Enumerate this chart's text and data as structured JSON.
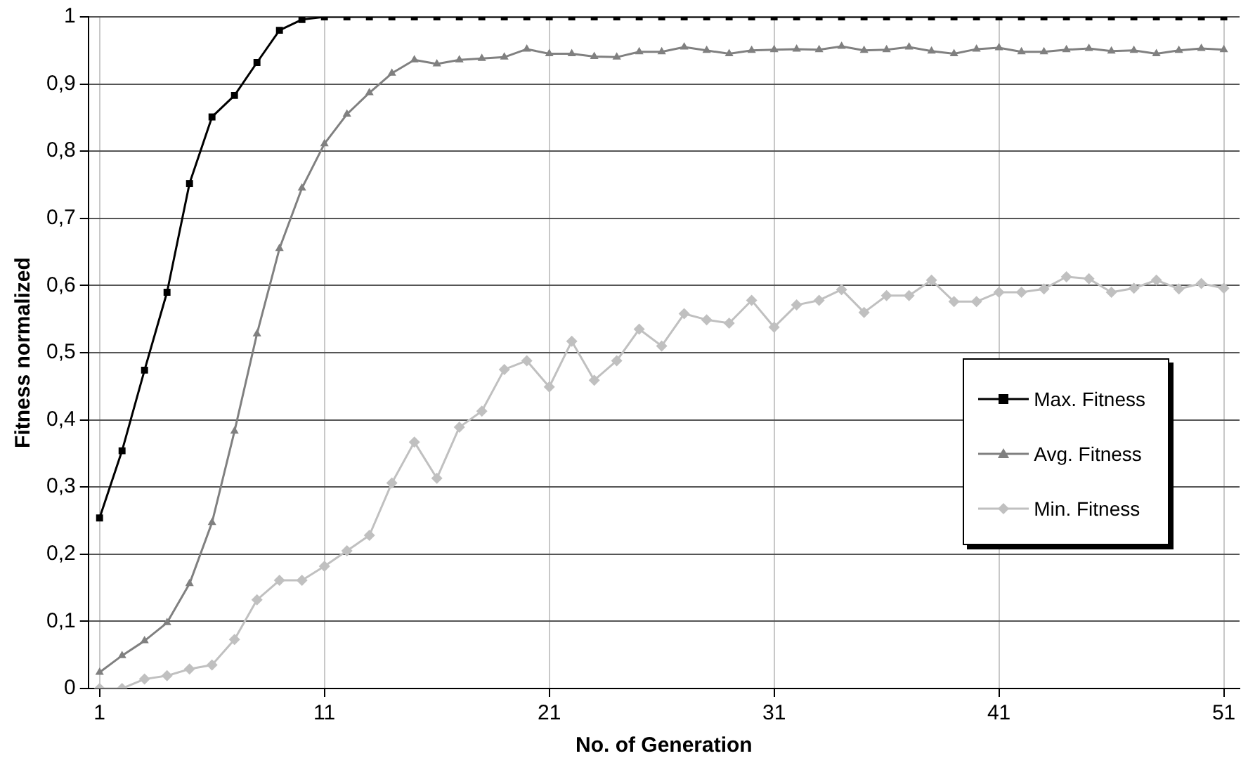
{
  "chart_data": {
    "type": "line",
    "xlabel": "No. of Generation",
    "ylabel": "Fitness normalized",
    "x": [
      1,
      2,
      3,
      4,
      5,
      6,
      7,
      8,
      9,
      10,
      11,
      12,
      13,
      14,
      15,
      16,
      17,
      18,
      19,
      20,
      21,
      22,
      23,
      24,
      25,
      26,
      27,
      28,
      29,
      30,
      31,
      32,
      33,
      34,
      35,
      36,
      37,
      38,
      39,
      40,
      41,
      42,
      43,
      44,
      45,
      46,
      47,
      48,
      49,
      50,
      51
    ],
    "series": [
      {
        "name": "Max. Fitness",
        "color": "#000000",
        "marker": "square",
        "values": [
          0.254,
          0.354,
          0.474,
          0.59,
          0.752,
          0.851,
          0.883,
          0.932,
          0.98,
          0.996,
          1,
          1,
          1,
          1,
          1,
          1,
          1,
          1,
          1,
          1,
          1,
          1,
          1,
          1,
          1,
          1,
          1,
          1,
          1,
          1,
          1,
          1,
          1,
          1,
          1,
          1,
          1,
          1,
          1,
          1,
          1,
          1,
          1,
          1,
          1,
          1,
          1,
          1,
          1,
          1,
          1
        ]
      },
      {
        "name": "Avg. Fitness",
        "color": "#808080",
        "marker": "triangle",
        "values": [
          0.024,
          0.049,
          0.071,
          0.098,
          0.156,
          0.247,
          0.383,
          0.528,
          0.655,
          0.745,
          0.811,
          0.855,
          0.887,
          0.916,
          0.936,
          0.93,
          0.936,
          0.938,
          0.94,
          0.952,
          0.945,
          0.945,
          0.941,
          0.94,
          0.948,
          0.948,
          0.955,
          0.95,
          0.945,
          0.95,
          0.951,
          0.952,
          0.951,
          0.956,
          0.95,
          0.951,
          0.955,
          0.949,
          0.945,
          0.952,
          0.954,
          0.948,
          0.948,
          0.951,
          0.953,
          0.949,
          0.95,
          0.945,
          0.95,
          0.953,
          0.951
        ]
      },
      {
        "name": "Min. Fitness",
        "color": "#c0c0c0",
        "marker": "diamond",
        "values": [
          0,
          0,
          0.014,
          0.019,
          0.029,
          0.035,
          0.073,
          0.132,
          0.161,
          0.161,
          0.182,
          0.205,
          0.228,
          0.306,
          0.367,
          0.313,
          0.389,
          0.413,
          0.475,
          0.488,
          0.449,
          0.517,
          0.459,
          0.488,
          0.535,
          0.51,
          0.558,
          0.549,
          0.544,
          0.578,
          0.538,
          0.571,
          0.578,
          0.594,
          0.56,
          0.585,
          0.585,
          0.608,
          0.576,
          0.576,
          0.59,
          0.59,
          0.595,
          0.613,
          0.61,
          0.59,
          0.596,
          0.608,
          0.595,
          0.603,
          0.596
        ]
      }
    ],
    "xlim": [
      0.5,
      51.7
    ],
    "xticks": [
      1,
      11,
      21,
      31,
      41,
      51
    ],
    "ylim": [
      0,
      1
    ],
    "yticks": [
      0,
      {
        "value": 0.1,
        "label": "0,1"
      },
      {
        "value": 0.2,
        "label": "0,2"
      },
      {
        "value": 0.3,
        "label": "0,3"
      },
      {
        "value": 0.4,
        "label": "0,4"
      },
      {
        "value": 0.5,
        "label": "0,5"
      },
      {
        "value": 0.6,
        "label": "0,6"
      },
      {
        "value": 0.7,
        "label": "0,7"
      },
      {
        "value": 0.8,
        "label": "0,8"
      },
      {
        "value": 0.9,
        "label": "0,9"
      },
      1
    ],
    "grid": true,
    "legend": "right",
    "line_style": "solid"
  }
}
